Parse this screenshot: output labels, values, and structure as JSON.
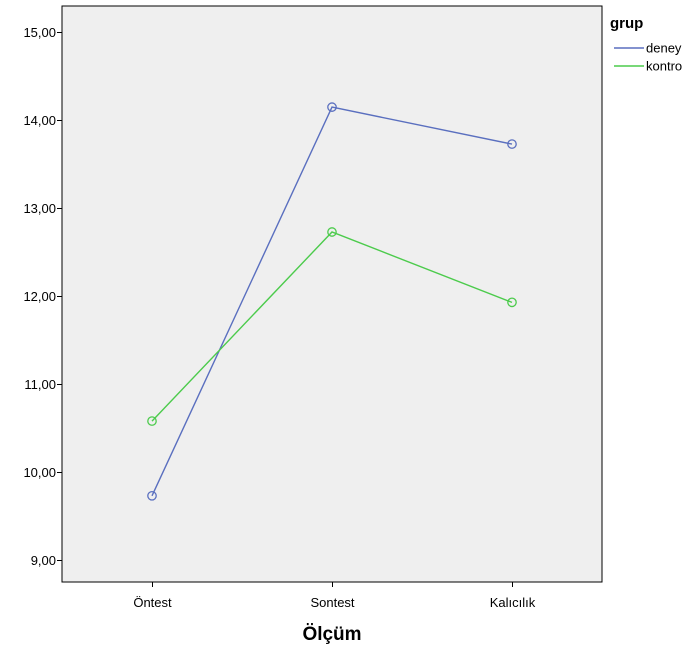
{
  "chart_data": {
    "type": "line",
    "categories": [
      "Öntest",
      "Sontest",
      "Kalıcılık"
    ],
    "xlabel": "Ölçüm",
    "ylabel": "",
    "ylim": [
      8.75,
      15.3
    ],
    "yticks": [
      9,
      10,
      11,
      12,
      13,
      14,
      15
    ],
    "ytick_labels": [
      "9,00",
      "10,00",
      "11,00",
      "12,00",
      "13,00",
      "14,00",
      "15,00"
    ],
    "grid": false,
    "legend": {
      "title": "grup",
      "position": "top-right"
    },
    "series": [
      {
        "name": "deney",
        "color": "#5a6fbf",
        "values": [
          9.73,
          14.15,
          13.73
        ]
      },
      {
        "name": "kontro",
        "color": "#4ccb4c",
        "values": [
          10.58,
          12.73,
          11.93
        ]
      }
    ],
    "background_color": "#efefef"
  }
}
